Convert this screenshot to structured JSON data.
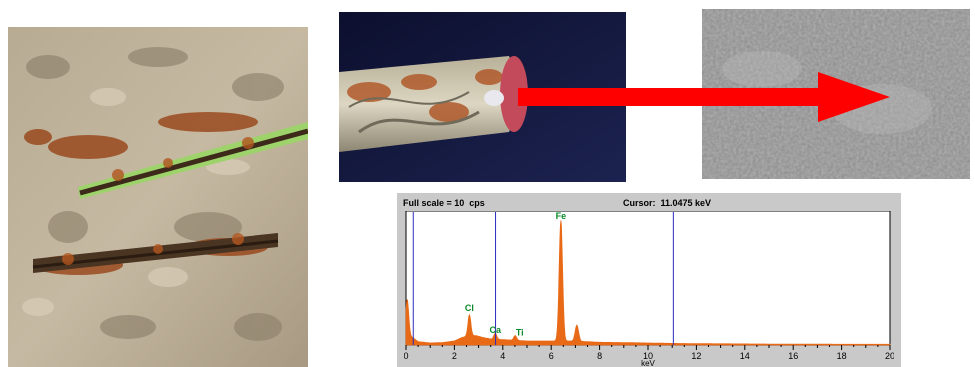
{
  "images": {
    "concrete_photo": {
      "icon": "concrete-rebar-photo"
    },
    "strand_photo": {
      "icon": "steel-strand-photo"
    },
    "sem_photo": {
      "icon": "sem-micrograph"
    },
    "arrow": {
      "icon": "arrow-right-icon",
      "color": "#ff0000"
    }
  },
  "eds": {
    "full_scale_label": "Full scale = 10  cps",
    "cursor_label": "Cursor:  11.0475 keV",
    "xlabel": "keV",
    "peak_labels": [
      "Fe",
      "Cl",
      "Ca",
      "Ti"
    ],
    "tick_labels": [
      "0",
      "2",
      "4",
      "6",
      "8",
      "10",
      "12",
      "14",
      "16",
      "18",
      "20"
    ]
  },
  "chart_data": {
    "type": "line",
    "xlabel": "keV",
    "xlim": [
      0,
      20
    ],
    "ylim": [
      0,
      10
    ],
    "series_color": "#e86a17",
    "cursor_kev": 11.0475,
    "markers_kev": [
      0.3,
      3.7,
      11.0475
    ],
    "peaks": [
      {
        "label": "",
        "kev": 0.05,
        "height": 2.6,
        "width": 0.06
      },
      {
        "label": "Cl",
        "kev": 2.62,
        "height": 1.55,
        "width": 0.06
      },
      {
        "label": "Ca",
        "kev": 3.69,
        "height": 0.45,
        "width": 0.06
      },
      {
        "label": "Ti",
        "kev": 4.51,
        "height": 0.35,
        "width": 0.06
      },
      {
        "label": "Fe",
        "kev": 6.4,
        "height": 9.0,
        "width": 0.07
      },
      {
        "label": "",
        "kev": 7.06,
        "height": 1.2,
        "width": 0.07
      }
    ],
    "x": [
      0.1,
      0.5,
      1.0,
      1.5,
      2.0,
      2.3,
      2.6,
      2.9,
      3.2,
      3.5,
      4.0,
      4.5,
      5.0,
      5.5,
      6.0,
      6.8,
      7.5,
      8.0,
      9.0,
      10.0,
      11.0,
      12.0,
      14.0,
      16.0,
      20.0
    ],
    "background": [
      0.8,
      0.25,
      0.15,
      0.18,
      0.3,
      0.55,
      0.7,
      0.7,
      0.55,
      0.45,
      0.4,
      0.35,
      0.3,
      0.3,
      0.3,
      0.3,
      0.25,
      0.2,
      0.18,
      0.15,
      0.12,
      0.1,
      0.08,
      0.06,
      0.05
    ]
  }
}
